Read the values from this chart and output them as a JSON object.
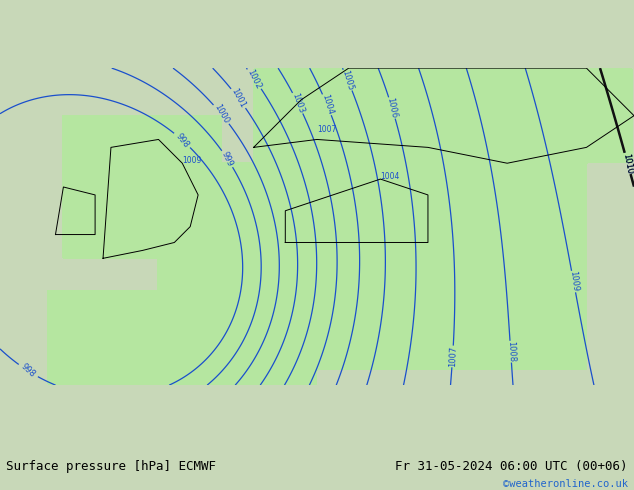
{
  "title_left": "Surface pressure [hPa] ECMWF",
  "title_right": "Fr 31-05-2024 06:00 UTC (00+06)",
  "copyright": "©weatheronline.co.uk",
  "bg_color_land": "#b5e6a0",
  "bg_color_sea": "#d8d8d8",
  "bg_color_outer": "#c8e0c8",
  "footer_bg": "#e8e8e8",
  "blue_isobar_color": "#1a4fcc",
  "red_isobar_color": "#cc2200",
  "black_isobar_color": "#111111",
  "label_fontsize": 7,
  "footer_fontsize": 9,
  "copyright_color": "#2266cc"
}
